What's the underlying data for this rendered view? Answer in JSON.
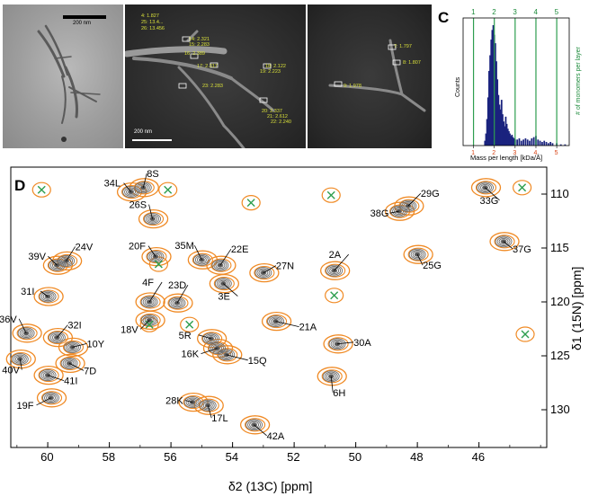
{
  "panels": {
    "A": {
      "label": "A",
      "scalebar_text": "200 nm"
    },
    "B": {
      "label": "B",
      "scalebar_text": "200 nm",
      "left_labels": [
        "4: 1.827",
        "25: 13.4...",
        "26: 13.456",
        "14: 2.321",
        "15: 2.283",
        "16: 2.389",
        "17: 2.317",
        "18: 2.122",
        "19: 2.223",
        "23: 2.283",
        "20: 2.337",
        "21: 2.612",
        "22: 2.240"
      ],
      "right_labels": [
        "7: 1.797",
        "8: 1.807",
        "9: 1.978"
      ]
    },
    "C": {
      "label": "C"
    },
    "D": {
      "label": "D"
    }
  },
  "chart_data": [
    {
      "type": "bar",
      "panel": "C",
      "xlabel": "Mass per length [kDa/Å]",
      "ylabel": "Counts",
      "right_axis_label": "# of monomers per layer",
      "top_ticks": [
        "1",
        "2",
        "3",
        "4",
        "5"
      ],
      "bottom_ticks": [
        "1",
        "2",
        "3",
        "4",
        "5"
      ],
      "reference_lines_x": [
        1,
        2,
        3,
        4,
        5
      ],
      "bin_centers": [
        1.55,
        1.6,
        1.65,
        1.7,
        1.75,
        1.8,
        1.85,
        1.9,
        1.95,
        2.0,
        2.05,
        2.1,
        2.15,
        2.2,
        2.25,
        2.3,
        2.35,
        2.4,
        2.45,
        2.5,
        2.55,
        2.6,
        2.65,
        2.7,
        2.75,
        2.8,
        2.85,
        2.9,
        2.95,
        3.0,
        3.1,
        3.2,
        3.3,
        3.4,
        3.5,
        3.6,
        3.7,
        3.8,
        3.9,
        4.0,
        4.1,
        4.2,
        4.3,
        4.4,
        4.5,
        4.6,
        4.7,
        4.8,
        5.0,
        5.2,
        5.4
      ],
      "values": [
        4,
        10,
        22,
        40,
        62,
        75,
        88,
        96,
        100,
        92,
        85,
        70,
        55,
        42,
        34,
        30,
        38,
        26,
        20,
        16,
        24,
        18,
        14,
        12,
        10,
        8,
        9,
        7,
        6,
        5,
        5,
        6,
        4,
        5,
        6,
        5,
        4,
        6,
        7,
        8,
        5,
        4,
        3,
        4,
        3,
        2,
        3,
        2,
        2,
        1,
        1
      ],
      "xlim": [
        0.5,
        5.6
      ]
    },
    {
      "type": "scatter",
      "panel": "D",
      "title": "",
      "xlabel": "δ2 (13C) [ppm]",
      "ylabel": "δ1 (15N) [ppm]",
      "x_ticks": [
        "60",
        "58",
        "56",
        "54",
        "52",
        "50",
        "48",
        "46"
      ],
      "y_ticks": [
        "110",
        "115",
        "120",
        "125",
        "130"
      ],
      "xlim": [
        61.2,
        43.8
      ],
      "ylim": [
        107.5,
        133.5
      ],
      "x_reversed": true,
      "y_reversed": true,
      "series": [
        {
          "color": "#888888",
          "points": [
            {
              "label": "8S",
              "x": 56.9,
              "y": 109.4
            },
            {
              "label": "34L",
              "x": 57.3,
              "y": 109.8
            },
            {
              "label": "26S",
              "x": 56.6,
              "y": 112.3
            },
            {
              "label": "29G",
              "x": 48.3,
              "y": 111.1
            },
            {
              "label": "38G",
              "x": 48.6,
              "y": 111.6
            },
            {
              "label": "33G",
              "x": 45.8,
              "y": 109.4
            },
            {
              "label": "37G",
              "x": 45.2,
              "y": 114.4
            },
            {
              "label": "39V",
              "x": 59.7,
              "y": 116.6
            },
            {
              "label": "24V",
              "x": 59.4,
              "y": 116.2
            },
            {
              "label": "20F",
              "x": 56.5,
              "y": 115.8
            },
            {
              "label": "35M",
              "x": 55.0,
              "y": 116.1
            },
            {
              "label": "22E",
              "x": 54.4,
              "y": 116.6
            },
            {
              "label": "27N",
              "x": 53.0,
              "y": 117.3
            },
            {
              "label": "2A",
              "x": 50.7,
              "y": 117.1
            },
            {
              "label": "25G",
              "x": 48.0,
              "y": 115.6
            },
            {
              "label": "3E",
              "x": 54.3,
              "y": 118.3
            },
            {
              "label": "31I",
              "x": 60.0,
              "y": 119.5
            },
            {
              "label": "4F",
              "x": 56.7,
              "y": 120.0
            },
            {
              "label": "23D",
              "x": 55.8,
              "y": 120.1
            },
            {
              "label": "18V",
              "x": 56.7,
              "y": 121.7
            },
            {
              "label": "36V",
              "x": 60.7,
              "y": 122.9
            },
            {
              "label": "32I",
              "x": 59.7,
              "y": 123.3
            },
            {
              "label": "10Y",
              "x": 59.2,
              "y": 124.2
            },
            {
              "label": "21A",
              "x": 52.6,
              "y": 121.8
            },
            {
              "label": "30A",
              "x": 50.6,
              "y": 123.9
            },
            {
              "label": "5R",
              "x": 54.7,
              "y": 123.4
            },
            {
              "label": "16K",
              "x": 54.5,
              "y": 124.3
            },
            {
              "label": "15Q",
              "x": 54.2,
              "y": 124.9
            },
            {
              "label": "40V",
              "x": 60.9,
              "y": 125.3
            },
            {
              "label": "7D",
              "x": 59.3,
              "y": 125.7
            },
            {
              "label": "41I",
              "x": 60.0,
              "y": 126.8
            },
            {
              "label": "6H",
              "x": 50.8,
              "y": 126.9
            },
            {
              "label": "19F",
              "x": 59.9,
              "y": 128.9
            },
            {
              "label": "28K",
              "x": 55.3,
              "y": 129.3
            },
            {
              "label": "17L",
              "x": 54.8,
              "y": 129.6
            },
            {
              "label": "42A",
              "x": 53.3,
              "y": 131.4
            }
          ]
        },
        {
          "color": "#f08a24",
          "cross_markers": [
            {
              "x": 60.2,
              "y": 109.6
            },
            {
              "x": 56.1,
              "y": 109.6
            },
            {
              "x": 53.4,
              "y": 110.8
            },
            {
              "x": 50.8,
              "y": 110.1
            },
            {
              "x": 44.6,
              "y": 109.4
            },
            {
              "x": 56.4,
              "y": 116.5
            },
            {
              "x": 50.7,
              "y": 119.4
            },
            {
              "x": 55.4,
              "y": 122.1
            },
            {
              "x": 56.7,
              "y": 122.1
            },
            {
              "x": 44.5,
              "y": 123.0
            }
          ]
        }
      ]
    }
  ]
}
